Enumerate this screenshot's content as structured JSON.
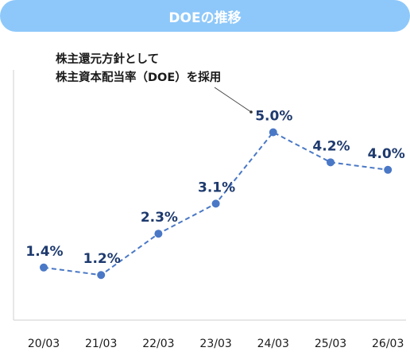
{
  "chart_data": {
    "type": "line",
    "title": "DOEの推移",
    "categories": [
      "20/03",
      "21/03",
      "22/03",
      "23/03",
      "24/03",
      "25/03",
      "26/03"
    ],
    "series": [
      {
        "values": [
          1.4,
          1.2,
          2.3,
          3.1,
          5.0,
          4.2,
          4.0
        ]
      }
    ],
    "data_labels": [
      "1.4%",
      "1.2%",
      "2.3%",
      "3.1%",
      "5.0%",
      "4.2%",
      "4.0%"
    ],
    "annotation": [
      "株主還元方針として",
      "株主資本配当率（DOE）を採用"
    ],
    "ylim": [
      0,
      6
    ],
    "grid": false,
    "line_style": "dashed",
    "color": "#4a78c6",
    "label_color": "#1e3a6e"
  }
}
